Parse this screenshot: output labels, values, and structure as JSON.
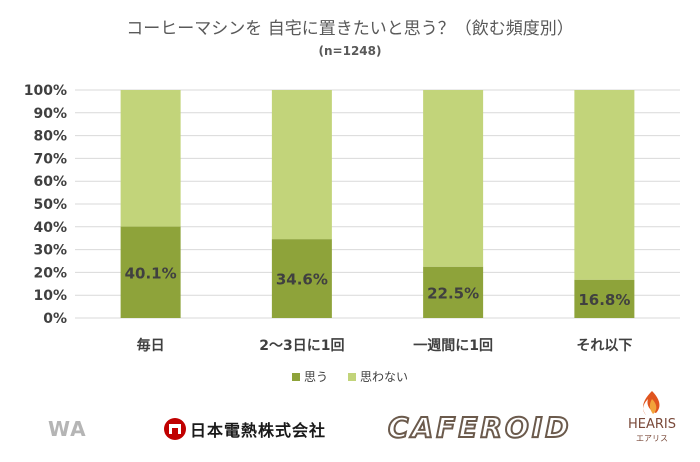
{
  "title": "コーヒーマシンを 自宅に置きたいと思う？（飲む頻度別）",
  "subtitle": "(n=1248)",
  "colors": {
    "omou": "#8ea33a",
    "omowanai": "#c2d47a",
    "grid": "#d9d9d9",
    "text": "#404040"
  },
  "chart_data": {
    "type": "bar",
    "stacked": true,
    "categories": [
      "毎日",
      "2〜3日に1回",
      "一週間に1回",
      "それ以下"
    ],
    "series": [
      {
        "name": "思う",
        "values": [
          40.1,
          34.6,
          22.5,
          16.8
        ]
      },
      {
        "name": "思わない",
        "values": [
          59.9,
          65.4,
          77.5,
          83.2
        ]
      }
    ],
    "data_labels": [
      "40.1%",
      "34.6%",
      "22.5%",
      "16.8%"
    ],
    "y_ticks": [
      "0%",
      "10%",
      "20%",
      "30%",
      "40%",
      "50%",
      "60%",
      "70%",
      "80%",
      "90%",
      "100%"
    ],
    "ylim": [
      0,
      100
    ],
    "grid": true,
    "legend_position": "bottom"
  },
  "logos": {
    "wa": "WA",
    "nihon": "日本電熱株式会社",
    "cafeid": "CAFEROID",
    "hearis": "HEARIS",
    "hearis_sub": "エアリス"
  }
}
